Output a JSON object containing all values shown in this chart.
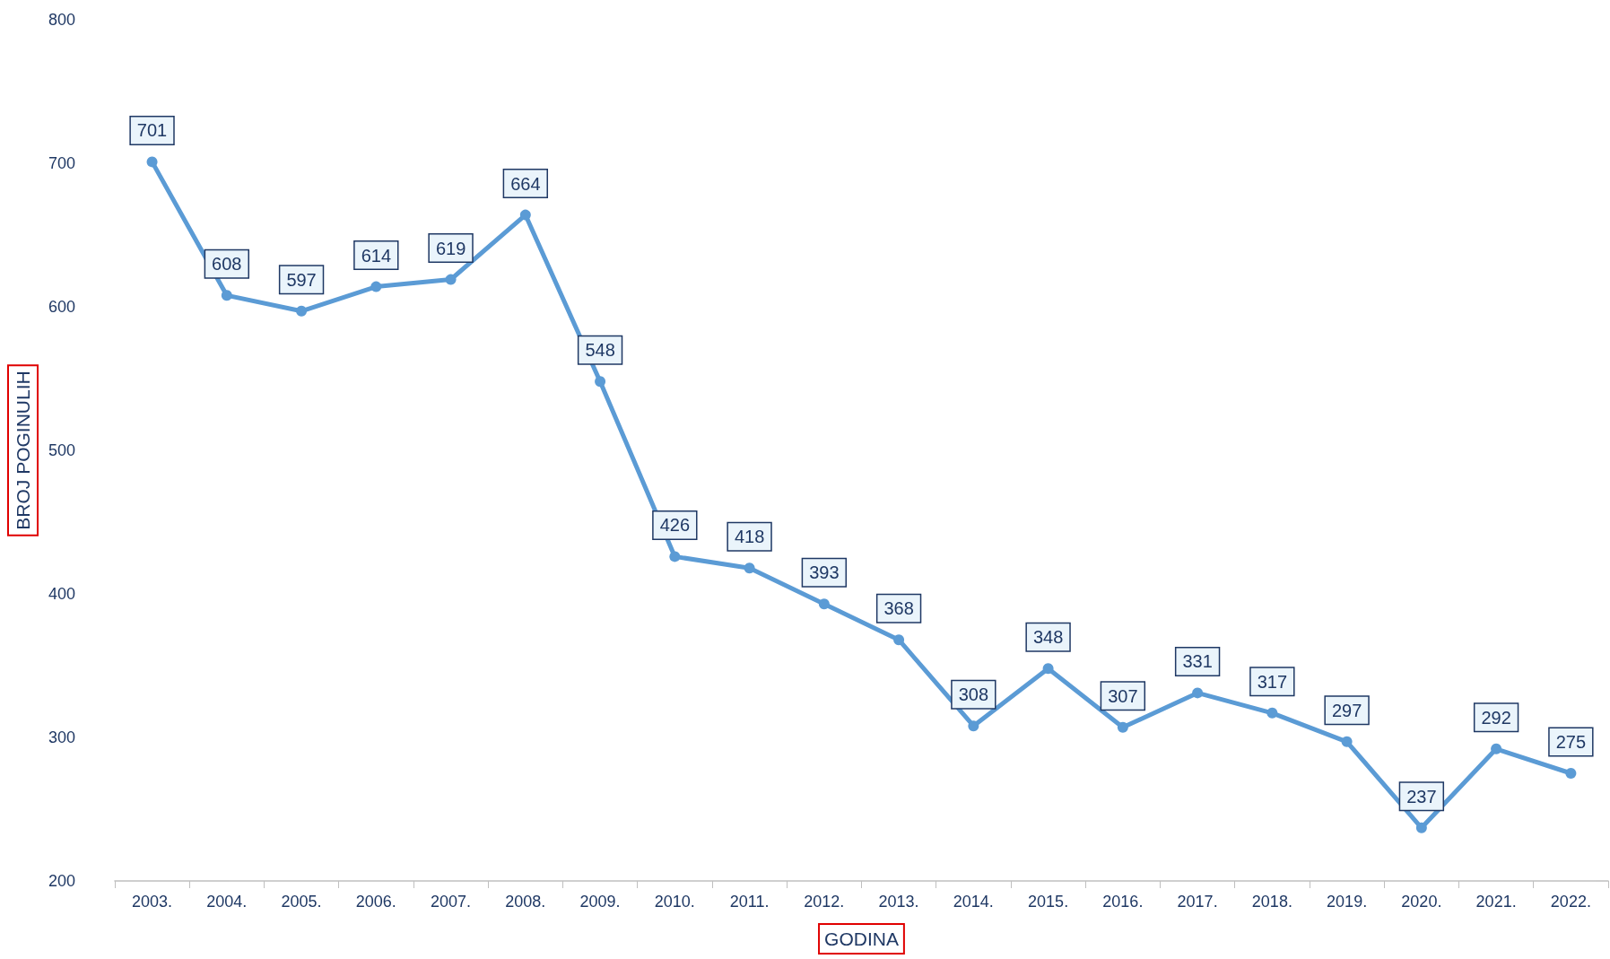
{
  "chart_data": {
    "type": "line",
    "xlabel": "GODINA",
    "ylabel": "BROJ POGINULIH",
    "categories": [
      "2003.",
      "2004.",
      "2005.",
      "2006.",
      "2007.",
      "2008.",
      "2009.",
      "2010.",
      "2011.",
      "2012.",
      "2013.",
      "2014.",
      "2015.",
      "2016.",
      "2017.",
      "2018.",
      "2019.",
      "2020.",
      "2021.",
      "2022."
    ],
    "values": [
      701,
      608,
      597,
      614,
      619,
      664,
      548,
      426,
      418,
      393,
      368,
      308,
      348,
      307,
      331,
      317,
      297,
      237,
      292,
      275
    ],
    "color": "#5b9bd5",
    "ylim": [
      200,
      800
    ],
    "yticks": [
      200,
      300,
      400,
      500,
      600,
      700,
      800
    ],
    "data_labels": true,
    "marker": "circle",
    "line_style": "solid",
    "grid": false
  }
}
